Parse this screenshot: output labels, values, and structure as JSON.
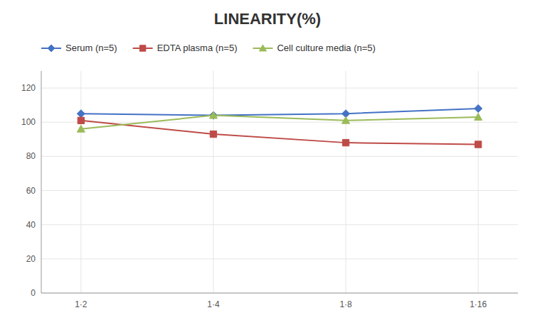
{
  "chart_data": {
    "type": "line",
    "title": "LINEARITY(%)",
    "categories": [
      "1·2",
      "1·4",
      "1·8",
      "1·16"
    ],
    "series": [
      {
        "name": "Serum (n=5)",
        "color": "#4472C4",
        "marker": "diamond",
        "values": [
          105,
          104,
          105,
          108
        ]
      },
      {
        "name": "EDTA plasma (n=5)",
        "color": "#BE4B48",
        "marker": "square",
        "values": [
          101,
          93,
          88,
          87
        ]
      },
      {
        "name": "Cell culture media (n=5)",
        "color": "#9BBB59",
        "marker": "triangle",
        "values": [
          96,
          104,
          101,
          103
        ]
      }
    ],
    "ylim": [
      0,
      130
    ],
    "yticks": [
      0,
      20,
      40,
      60,
      80,
      100,
      120
    ],
    "grid": true,
    "legend": "top"
  }
}
